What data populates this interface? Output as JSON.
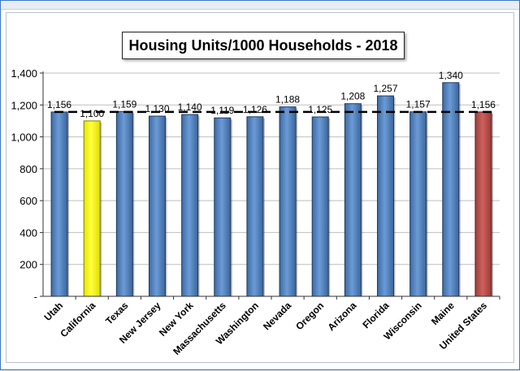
{
  "chart_data": {
    "type": "bar",
    "title": "Housing Units/1000 Households - 2018",
    "xlabel": "",
    "ylabel": "",
    "ylim": [
      0,
      1400
    ],
    "y_ticks": [
      0,
      200,
      400,
      600,
      800,
      1000,
      1200,
      1400
    ],
    "y_tick_labels": [
      "-",
      "200",
      "400",
      "600",
      "800",
      "1,000",
      "1,200",
      "1,400"
    ],
    "categories": [
      "Utah",
      "California",
      "Texas",
      "New Jersey",
      "New York",
      "Massachusetts",
      "Washington",
      "Nevada",
      "Oregon",
      "Arizona",
      "Florida",
      "Wisconsin",
      "Maine",
      "United States"
    ],
    "values": [
      1156,
      1100,
      1159,
      1130,
      1140,
      1119,
      1126,
      1188,
      1125,
      1208,
      1257,
      1157,
      1340,
      1156
    ],
    "value_labels": [
      "1,156",
      "1,100",
      "1,159",
      "1,130",
      "1,140",
      "1,119",
      "1,126",
      "1,188",
      "1,125",
      "1,208",
      "1,257",
      "1,157",
      "1,340",
      "1,156"
    ],
    "bar_colors": [
      "#4f81bd",
      "#ffff00",
      "#4f81bd",
      "#4f81bd",
      "#4f81bd",
      "#4f81bd",
      "#4f81bd",
      "#4f81bd",
      "#4f81bd",
      "#4f81bd",
      "#4f81bd",
      "#4f81bd",
      "#4f81bd",
      "#c0504d"
    ],
    "reference_line": {
      "value": 1156,
      "style": "dashed",
      "color": "#000000"
    },
    "grid": true,
    "legend": false
  }
}
